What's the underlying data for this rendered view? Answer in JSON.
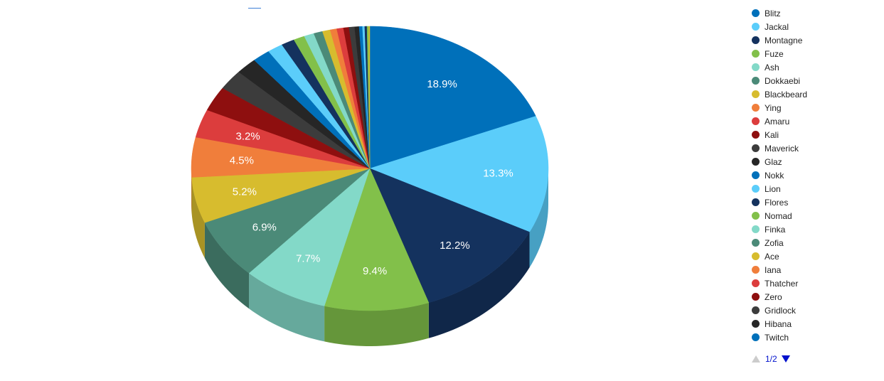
{
  "chart_data": {
    "type": "pie",
    "title": "",
    "three_d": true,
    "legend_position": "right",
    "slices": [
      {
        "name": "Blitz",
        "value": 18.9,
        "label": "18.9%",
        "color": "#0070ba"
      },
      {
        "name": "Jackal",
        "value": 13.3,
        "label": "13.3%",
        "color": "#5bcdfa"
      },
      {
        "name": "Montagne",
        "value": 12.2,
        "label": "12.2%",
        "color": "#14325e"
      },
      {
        "name": "Fuze",
        "value": 9.4,
        "label": "9.4%",
        "color": "#82c04a"
      },
      {
        "name": "Ash",
        "value": 7.7,
        "label": "7.7%",
        "color": "#83d9c8"
      },
      {
        "name": "Dokkaebi",
        "value": 6.9,
        "label": "6.9%",
        "color": "#4b8a78"
      },
      {
        "name": "Blackbeard",
        "value": 5.2,
        "label": "5.2%",
        "color": "#d7bc2e"
      },
      {
        "name": "Ying",
        "value": 4.5,
        "label": "4.5%",
        "color": "#f07e3b"
      },
      {
        "name": "Amaru",
        "value": 3.2,
        "label": "3.2%",
        "color": "#dc3d3d"
      },
      {
        "name": "Kali",
        "value": 2.8,
        "label": "",
        "color": "#8e0f0f"
      },
      {
        "name": "Maverick",
        "value": 2.3,
        "label": "",
        "color": "#3c3c3c"
      },
      {
        "name": "Glaz",
        "value": 1.9,
        "label": "",
        "color": "#262626"
      },
      {
        "name": "Nokk",
        "value": 1.6,
        "label": "",
        "color": "#0070ba"
      },
      {
        "name": "Lion",
        "value": 1.4,
        "label": "",
        "color": "#5bcdfa"
      },
      {
        "name": "Flores",
        "value": 1.2,
        "label": "",
        "color": "#14325e"
      },
      {
        "name": "Nomad",
        "value": 1.0,
        "label": "",
        "color": "#82c04a"
      },
      {
        "name": "Finka",
        "value": 0.9,
        "label": "",
        "color": "#83d9c8"
      },
      {
        "name": "Zofia",
        "value": 0.8,
        "label": "",
        "color": "#4b8a78"
      },
      {
        "name": "Ace",
        "value": 0.7,
        "label": "",
        "color": "#d7bc2e"
      },
      {
        "name": "Iana",
        "value": 0.6,
        "label": "",
        "color": "#f07e3b"
      },
      {
        "name": "Thatcher",
        "value": 0.6,
        "label": "",
        "color": "#dc3d3d"
      },
      {
        "name": "Zero",
        "value": 0.5,
        "label": "",
        "color": "#8e0f0f"
      },
      {
        "name": "Gridlock",
        "value": 0.5,
        "label": "",
        "color": "#3c3c3c"
      },
      {
        "name": "Hibana",
        "value": 0.4,
        "label": "",
        "color": "#262626"
      },
      {
        "name": "Twitch",
        "value": 0.3,
        "label": "",
        "color": "#0070ba"
      },
      {
        "name": "",
        "value": 0.2,
        "label": "",
        "color": "#5bcdfa"
      },
      {
        "name": "",
        "value": 0.2,
        "label": "",
        "color": "#14325e"
      },
      {
        "name": "",
        "value": 0.15,
        "label": "",
        "color": "#82c04a"
      },
      {
        "name": "",
        "value": 0.1,
        "label": "",
        "color": "#d7bc2e"
      }
    ]
  },
  "legend": {
    "items": [
      {
        "label": "Blitz",
        "color": "#0070ba"
      },
      {
        "label": "Jackal",
        "color": "#5bcdfa"
      },
      {
        "label": "Montagne",
        "color": "#14325e"
      },
      {
        "label": "Fuze",
        "color": "#82c04a"
      },
      {
        "label": "Ash",
        "color": "#83d9c8"
      },
      {
        "label": "Dokkaebi",
        "color": "#4b8a78"
      },
      {
        "label": "Blackbeard",
        "color": "#d7bc2e"
      },
      {
        "label": "Ying",
        "color": "#f07e3b"
      },
      {
        "label": "Amaru",
        "color": "#dc3d3d"
      },
      {
        "label": "Kali",
        "color": "#8e0f0f"
      },
      {
        "label": "Maverick",
        "color": "#3c3c3c"
      },
      {
        "label": "Glaz",
        "color": "#262626"
      },
      {
        "label": "Nokk",
        "color": "#0070ba"
      },
      {
        "label": "Lion",
        "color": "#5bcdfa"
      },
      {
        "label": "Flores",
        "color": "#14325e"
      },
      {
        "label": "Nomad",
        "color": "#82c04a"
      },
      {
        "label": "Finka",
        "color": "#83d9c8"
      },
      {
        "label": "Zofia",
        "color": "#4b8a78"
      },
      {
        "label": "Ace",
        "color": "#d7bc2e"
      },
      {
        "label": "Iana",
        "color": "#f07e3b"
      },
      {
        "label": "Thatcher",
        "color": "#dc3d3d"
      },
      {
        "label": "Zero",
        "color": "#8e0f0f"
      },
      {
        "label": "Gridlock",
        "color": "#3c3c3c"
      },
      {
        "label": "Hibana",
        "color": "#262626"
      },
      {
        "label": "Twitch",
        "color": "#0070ba"
      }
    ],
    "pager_text": "1/2",
    "pager_prev_icon": "triangle-up-icon",
    "pager_next_icon": "triangle-down-icon"
  }
}
